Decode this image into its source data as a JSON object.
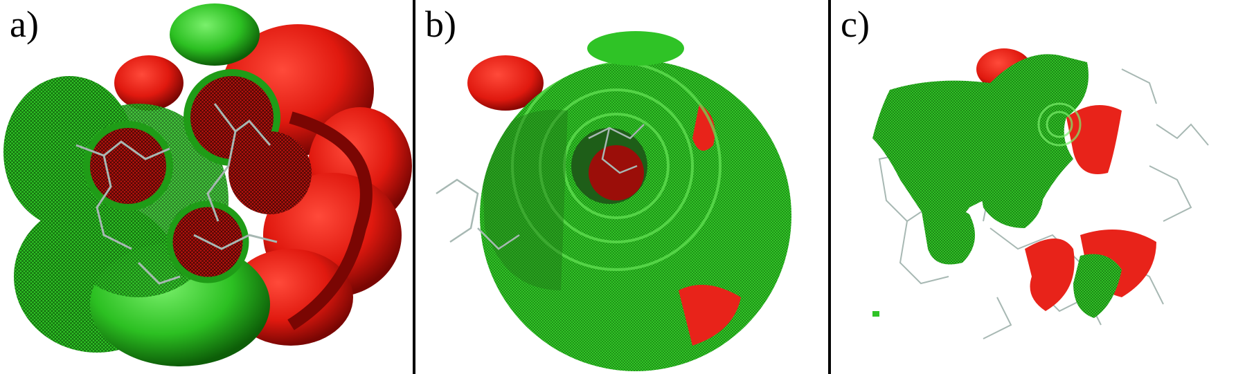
{
  "panels": [
    {
      "label": "a)",
      "description_icon": "molecular-surface-dense-icon"
    },
    {
      "label": "b)",
      "description_icon": "molecular-surface-sphere-icon"
    },
    {
      "label": "c)",
      "description_icon": "molecular-surface-partial-icon"
    }
  ],
  "colors": {
    "green": "#27c21f",
    "green_light": "#5ee650",
    "green_dark": "#0f6e0a",
    "red": "#e8231a",
    "red_dark": "#8a0b07",
    "bond": "#a7b8b3",
    "divider": "#000000"
  }
}
